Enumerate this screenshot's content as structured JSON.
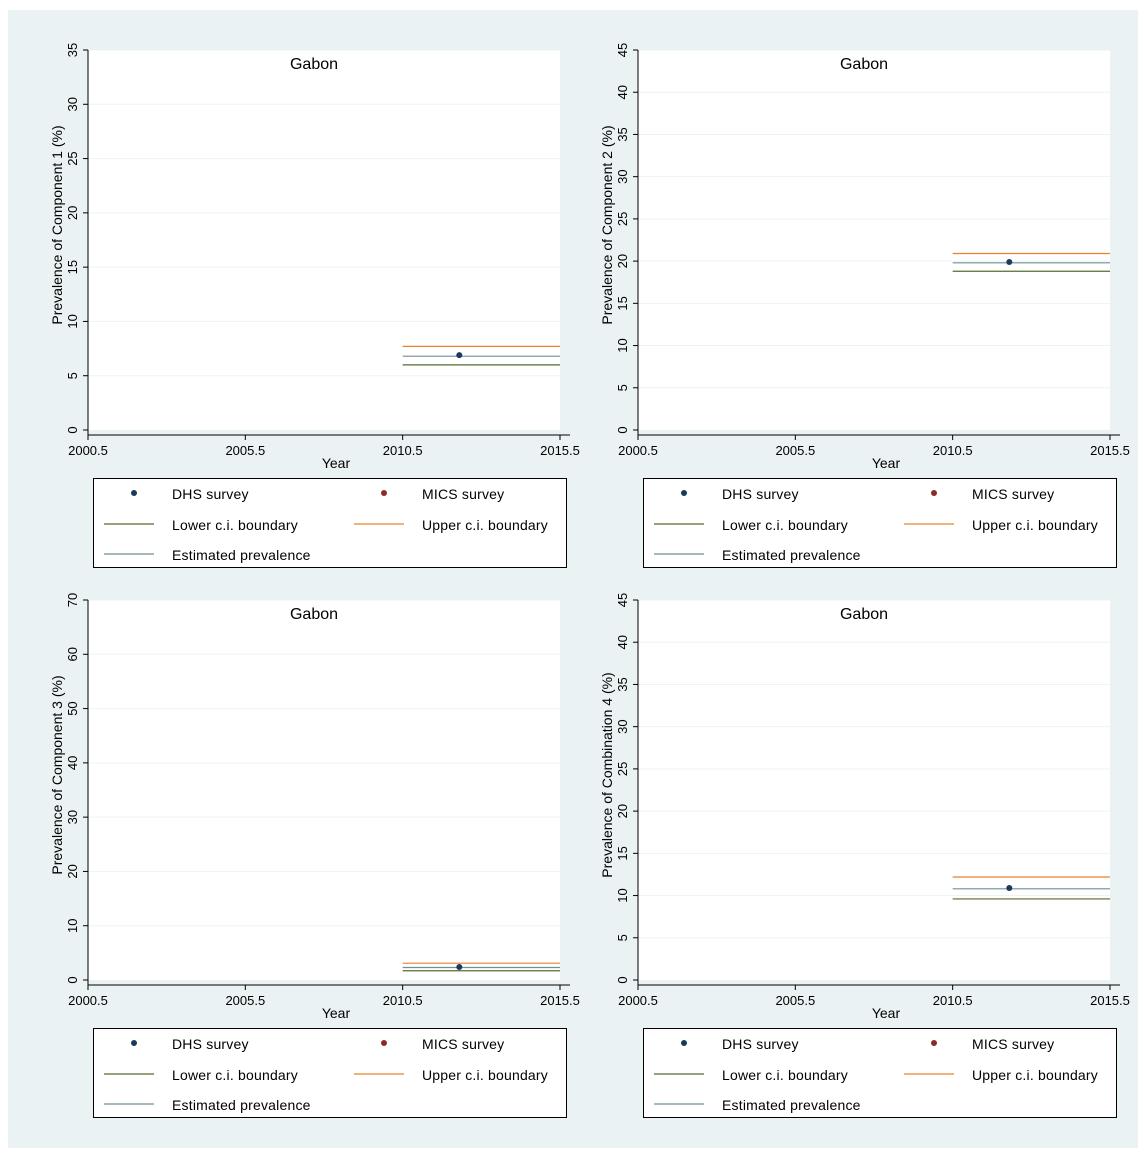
{
  "legend": {
    "dhs": "DHS survey",
    "mics": "MICS survey",
    "lower": "Lower c.i. boundary",
    "upper": "Upper c.i. boundary",
    "estimated": "Estimated prevalence"
  },
  "colors": {
    "background": "#eaf2f3",
    "dhs_marker": "#1a3a5c",
    "mics_marker": "#8b2c2c",
    "lower_line": "#556b2f",
    "upper_line": "#e8832a",
    "estimated_line": "#6f8f96",
    "grid": "#eef3f4"
  },
  "chart_data": [
    {
      "type": "scatter",
      "title": "Gabon",
      "xlabel": "Year",
      "ylabel": "Prevalence of Component 1 (%)",
      "xlim": [
        2000.5,
        2015.5
      ],
      "ylim": [
        0,
        35
      ],
      "x_ticks": [
        "2000.5",
        "2005.5",
        "2010.5",
        "2015.5"
      ],
      "y_ticks": [
        0,
        5,
        10,
        15,
        20,
        25,
        30,
        35
      ],
      "dhs_points": [
        {
          "x": 2012.3,
          "y": 6.9
        }
      ],
      "mics_points": [],
      "lower_ci": {
        "x": [
          2010.5,
          2015.5
        ],
        "y": 6.0
      },
      "upper_ci": {
        "x": [
          2010.5,
          2015.5
        ],
        "y": 7.7
      },
      "estimated": {
        "x": [
          2010.5,
          2015.5
        ],
        "y": 6.8
      }
    },
    {
      "type": "scatter",
      "title": "Gabon",
      "xlabel": "Year",
      "ylabel": "Prevalence of Component 2 (%)",
      "xlim": [
        2000.5,
        2015.5
      ],
      "ylim": [
        0,
        45
      ],
      "x_ticks": [
        "2000.5",
        "2005.5",
        "2010.5",
        "2015.5"
      ],
      "y_ticks": [
        0,
        5,
        10,
        15,
        20,
        25,
        30,
        35,
        40,
        45
      ],
      "dhs_points": [
        {
          "x": 2012.3,
          "y": 19.9
        }
      ],
      "mics_points": [],
      "lower_ci": {
        "x": [
          2010.5,
          2015.5
        ],
        "y": 18.8
      },
      "upper_ci": {
        "x": [
          2010.5,
          2015.5
        ],
        "y": 20.9
      },
      "estimated": {
        "x": [
          2010.5,
          2015.5
        ],
        "y": 19.8
      }
    },
    {
      "type": "scatter",
      "title": "Gabon",
      "xlabel": "Year",
      "ylabel": "Prevalence of Component 3 (%)",
      "xlim": [
        2000.5,
        2015.5
      ],
      "ylim": [
        0,
        70
      ],
      "x_ticks": [
        "2000.5",
        "2005.5",
        "2010.5",
        "2015.5"
      ],
      "y_ticks": [
        0,
        10,
        20,
        30,
        40,
        50,
        60,
        70
      ],
      "dhs_points": [
        {
          "x": 2012.3,
          "y": 2.4
        }
      ],
      "mics_points": [],
      "lower_ci": {
        "x": [
          2010.5,
          2015.5
        ],
        "y": 1.7
      },
      "upper_ci": {
        "x": [
          2010.5,
          2015.5
        ],
        "y": 3.1
      },
      "estimated": {
        "x": [
          2010.5,
          2015.5
        ],
        "y": 2.3
      }
    },
    {
      "type": "scatter",
      "title": "Gabon",
      "xlabel": "Year",
      "ylabel": "Prevalence of Combination 4 (%)",
      "xlim": [
        2000.5,
        2015.5
      ],
      "ylim": [
        0,
        45
      ],
      "x_ticks": [
        "2000.5",
        "2005.5",
        "2010.5",
        "2015.5"
      ],
      "y_ticks": [
        0,
        5,
        10,
        15,
        20,
        25,
        30,
        35,
        40,
        45
      ],
      "dhs_points": [
        {
          "x": 2012.3,
          "y": 10.9
        }
      ],
      "mics_points": [],
      "lower_ci": {
        "x": [
          2010.5,
          2015.5
        ],
        "y": 9.6
      },
      "upper_ci": {
        "x": [
          2010.5,
          2015.5
        ],
        "y": 12.2
      },
      "estimated": {
        "x": [
          2010.5,
          2015.5
        ],
        "y": 10.8
      }
    }
  ]
}
